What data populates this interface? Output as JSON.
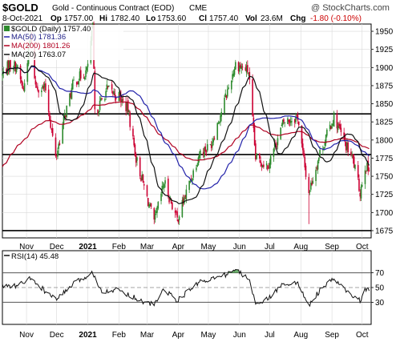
{
  "header": {
    "symbol": "$GOLD",
    "name": "Gold - Continuous Contract (EOD)",
    "exchange": "CME",
    "watermark": "@ StockCharts.com",
    "date": "8-Oct-2021",
    "open_label": "Op",
    "open": "1757.00",
    "high_label": "Hi",
    "high": "1782.40",
    "low_label": "Lo",
    "low": "1753.60",
    "close_label": "Cl",
    "close": "1757.40",
    "vol_label": "Vol",
    "vol": "23.6M",
    "chg_label": "Chg",
    "chg": "-1.80 (-0.10%)"
  },
  "colors": {
    "up": "#2e8b2e",
    "down": "#cc0033",
    "ma50": "#2222aa",
    "ma200": "#b00020",
    "ma20": "#111111",
    "hline": "#000000",
    "grid": "#d9d9d9",
    "rsi": "#111111",
    "rsi_fill": "#3c9a3c"
  },
  "chart_data": [
    {
      "type": "candlestick",
      "title": "$GOLD (Daily) 1757.40",
      "ylim": [
        1665,
        1960
      ],
      "yticks": [
        1675,
        1700,
        1725,
        1750,
        1775,
        1800,
        1825,
        1850,
        1875,
        1900,
        1925,
        1950
      ],
      "xticks": [
        "Nov",
        "Dec",
        "2021",
        "Feb",
        "Mar",
        "Apr",
        "May",
        "Jun",
        "Jul",
        "Aug",
        "Sep",
        "Oct"
      ],
      "horizontal_lines": [
        1836,
        1780,
        1675
      ],
      "legend": [
        {
          "label": "MA(50) 1781.36",
          "color": "#2222aa"
        },
        {
          "label": "MA(200) 1801.26",
          "color": "#b00020"
        },
        {
          "label": "MA(20) 1763.07",
          "color": "#111111"
        }
      ],
      "close_anchors": [
        {
          "date": "2020-10-08",
          "close": 1890
        },
        {
          "date": "2020-10-15",
          "close": 1905
        },
        {
          "date": "2020-10-22",
          "close": 1902
        },
        {
          "date": "2020-10-29",
          "close": 1868
        },
        {
          "date": "2020-11-05",
          "close": 1945
        },
        {
          "date": "2020-11-10",
          "close": 1875
        },
        {
          "date": "2020-11-20",
          "close": 1870
        },
        {
          "date": "2020-11-30",
          "close": 1775
        },
        {
          "date": "2020-12-10",
          "close": 1838
        },
        {
          "date": "2020-12-18",
          "close": 1880
        },
        {
          "date": "2020-12-31",
          "close": 1895
        },
        {
          "date": "2021-01-06",
          "close": 1955
        },
        {
          "date": "2021-01-08",
          "close": 1835
        },
        {
          "date": "2021-01-20",
          "close": 1870
        },
        {
          "date": "2021-02-01",
          "close": 1860
        },
        {
          "date": "2021-02-10",
          "close": 1842
        },
        {
          "date": "2021-02-18",
          "close": 1775
        },
        {
          "date": "2021-02-26",
          "close": 1735
        },
        {
          "date": "2021-03-08",
          "close": 1685
        },
        {
          "date": "2021-03-18",
          "close": 1742
        },
        {
          "date": "2021-03-31",
          "close": 1690
        },
        {
          "date": "2021-04-12",
          "close": 1740
        },
        {
          "date": "2021-04-22",
          "close": 1782
        },
        {
          "date": "2021-05-03",
          "close": 1792
        },
        {
          "date": "2021-05-14",
          "close": 1840
        },
        {
          "date": "2021-05-28",
          "close": 1905
        },
        {
          "date": "2021-06-10",
          "close": 1895
        },
        {
          "date": "2021-06-17",
          "close": 1775
        },
        {
          "date": "2021-06-29",
          "close": 1765
        },
        {
          "date": "2021-07-15",
          "close": 1825
        },
        {
          "date": "2021-07-29",
          "close": 1832
        },
        {
          "date": "2021-08-05",
          "close": 1762
        },
        {
          "date": "2021-08-09",
          "close": 1728
        },
        {
          "date": "2021-08-20",
          "close": 1782
        },
        {
          "date": "2021-09-03",
          "close": 1832
        },
        {
          "date": "2021-09-15",
          "close": 1792
        },
        {
          "date": "2021-09-22",
          "close": 1772
        },
        {
          "date": "2021-09-29",
          "close": 1728
        },
        {
          "date": "2021-10-04",
          "close": 1765
        },
        {
          "date": "2021-10-08",
          "close": 1757.4
        }
      ],
      "spikes": [
        {
          "date": "2021-08-09",
          "low": 1684
        },
        {
          "date": "2021-01-06",
          "high": 1960
        }
      ]
    },
    {
      "type": "line",
      "title": "RSI(14) 45.48",
      "ylim": [
        0,
        100
      ],
      "yticks": [
        30,
        50,
        70
      ],
      "xticks": [
        "Nov",
        "Dec",
        "2021",
        "Feb",
        "Mar",
        "Apr",
        "May",
        "Jun",
        "Jul",
        "Aug",
        "Sep",
        "Oct"
      ],
      "reference_lines": [
        30,
        50,
        70
      ],
      "anchors": [
        {
          "date": "2020-10-08",
          "value": 52
        },
        {
          "date": "2020-10-22",
          "value": 52
        },
        {
          "date": "2020-11-05",
          "value": 62
        },
        {
          "date": "2020-11-30",
          "value": 33
        },
        {
          "date": "2020-12-18",
          "value": 55
        },
        {
          "date": "2021-01-06",
          "value": 70
        },
        {
          "date": "2021-01-15",
          "value": 45
        },
        {
          "date": "2021-02-01",
          "value": 47
        },
        {
          "date": "2021-02-26",
          "value": 30
        },
        {
          "date": "2021-03-08",
          "value": 27
        },
        {
          "date": "2021-03-18",
          "value": 48
        },
        {
          "date": "2021-03-31",
          "value": 32
        },
        {
          "date": "2021-04-22",
          "value": 58
        },
        {
          "date": "2021-05-14",
          "value": 65
        },
        {
          "date": "2021-05-28",
          "value": 74
        },
        {
          "date": "2021-06-10",
          "value": 62
        },
        {
          "date": "2021-06-17",
          "value": 30
        },
        {
          "date": "2021-06-29",
          "value": 34
        },
        {
          "date": "2021-07-15",
          "value": 56
        },
        {
          "date": "2021-07-29",
          "value": 55
        },
        {
          "date": "2021-08-09",
          "value": 26
        },
        {
          "date": "2021-08-20",
          "value": 46
        },
        {
          "date": "2021-09-03",
          "value": 62
        },
        {
          "date": "2021-09-15",
          "value": 45
        },
        {
          "date": "2021-09-29",
          "value": 32
        },
        {
          "date": "2021-10-04",
          "value": 48
        },
        {
          "date": "2021-10-08",
          "value": 45.48
        }
      ]
    }
  ]
}
